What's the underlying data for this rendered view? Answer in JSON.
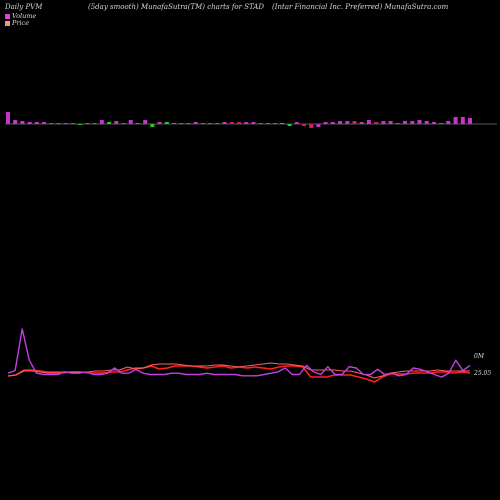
{
  "header": {
    "left": "Daily PVM",
    "middle": "(5day smooth) MunafaSutra(TM) charts for STAD",
    "right": "(Intar Financial Inc. Preferred) MunafaSutra.com"
  },
  "legend": [
    {
      "label": "Volume",
      "color": "#e040e0"
    },
    {
      "label": "Price",
      "color": "#e8a070"
    }
  ],
  "colors": {
    "background": "#000000",
    "up_bar": "#cc33cc",
    "down_bar": "#22cc22",
    "neutral_bar": "#d81b60",
    "volume_line": "#c040e0",
    "price_line_a": "#ff2020",
    "price_line_b": "#ff6060",
    "baseline": "#b0b0b0"
  },
  "chart_data": {
    "type": "bar+line",
    "title": "(5day smooth) MunafaSutra(TM) charts for STAD",
    "series": [
      {
        "name": "Volume",
        "kind": "bar",
        "values": [
          12,
          4,
          3,
          2,
          2,
          2,
          1,
          1,
          1,
          1,
          -1,
          1,
          1,
          4,
          2,
          3,
          1,
          4,
          1,
          4,
          -3,
          2,
          2,
          1,
          1,
          1,
          2,
          1,
          1,
          1,
          2,
          2,
          2,
          2,
          2,
          1,
          1,
          1,
          1,
          -2,
          2,
          -2,
          -4,
          -3,
          2,
          2,
          3,
          3,
          3,
          2,
          4,
          2,
          3,
          3,
          1,
          3,
          3,
          4,
          3,
          2,
          1,
          3,
          7,
          7,
          6
        ],
        "signs": [
          "u",
          "u",
          "u",
          "u",
          "u",
          "u",
          "u",
          "u",
          "u",
          "u",
          "d",
          "u",
          "u",
          "u",
          "d",
          "u",
          "u",
          "u",
          "u",
          "u",
          "d",
          "u",
          "d",
          "u",
          "u",
          "u",
          "u",
          "u",
          "u",
          "u",
          "u",
          "n",
          "n",
          "u",
          "u",
          "u",
          "u",
          "u",
          "d",
          "d",
          "u",
          "n",
          "n",
          "u",
          "u",
          "u",
          "u",
          "u",
          "n",
          "u",
          "u",
          "n",
          "u",
          "u",
          "u",
          "u",
          "u",
          "u",
          "u",
          "u",
          "u",
          "u",
          "u",
          "u",
          "u"
        ]
      },
      {
        "name": "Volume",
        "kind": "line",
        "values": [
          6,
          8,
          40,
          16,
          6,
          5,
          5,
          5,
          7,
          6,
          6,
          7,
          5,
          5,
          6,
          10,
          6,
          6,
          9,
          6,
          5,
          5,
          5,
          6,
          6,
          5,
          5,
          5,
          6,
          5,
          5,
          5,
          5,
          4,
          4,
          4,
          5,
          6,
          7,
          10,
          5,
          5,
          12,
          7,
          5,
          11,
          5,
          5,
          11,
          10,
          5,
          5,
          9,
          5,
          6,
          4,
          5,
          10,
          9,
          7,
          5,
          3,
          6,
          16,
          8,
          12
        ]
      },
      {
        "name": "Price",
        "kind": "line",
        "values": [
          25.0,
          25.01,
          25.06,
          25.06,
          25.05,
          25.04,
          25.04,
          25.04,
          25.04,
          25.04,
          25.03,
          25.03,
          25.03,
          25.04,
          25.04,
          25.06,
          25.08,
          25.08,
          25.1,
          25.07,
          25.08,
          25.1,
          25.1,
          25.1,
          25.09,
          25.08,
          25.09,
          25.1,
          25.08,
          25.09,
          25.08,
          25.09,
          25.08,
          25.07,
          25.09,
          25.1,
          25.1,
          25.09,
          24.99,
          24.99,
          24.99,
          25.01,
          25.01,
          25.01,
          24.99,
          24.97,
          24.94,
          24.99,
          25.02,
          25.02,
          25.02,
          25.03,
          25.03,
          25.03,
          25.04,
          25.04,
          25.03,
          25.04,
          25.03
        ],
        "last_label": "25.05"
      },
      {
        "name": "Price",
        "kind": "line",
        "values": [
          25.0,
          25.01,
          25.05,
          25.05,
          25.04,
          25.03,
          25.03,
          25.03,
          25.04,
          25.04,
          25.04,
          25.05,
          25.05,
          25.06,
          25.06,
          25.09,
          25.07,
          25.08,
          25.11,
          25.12,
          25.12,
          25.12,
          25.11,
          25.1,
          25.1,
          25.1,
          25.11,
          25.11,
          25.1,
          25.09,
          25.1,
          25.11,
          25.12,
          25.13,
          25.12,
          25.12,
          25.11,
          25.1,
          25.06,
          25.06,
          25.06,
          25.06,
          25.05,
          25.05,
          25.03,
          25.01,
          24.98,
          25.0,
          25.03,
          25.04,
          25.05,
          25.05,
          25.05,
          25.05,
          25.06,
          25.05,
          25.05,
          25.05,
          25.05
        ]
      }
    ],
    "volume_axis_label": "0M",
    "price_axis_label": "25.05",
    "grid": false
  }
}
